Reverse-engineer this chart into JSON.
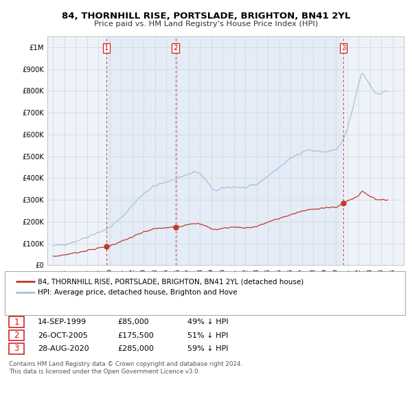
{
  "title": "84, THORNHILL RISE, PORTSLADE, BRIGHTON, BN41 2YL",
  "subtitle": "Price paid vs. HM Land Registry's House Price Index (HPI)",
  "hpi_label": "HPI: Average price, detached house, Brighton and Hove",
  "property_label": "84, THORNHILL RISE, PORTSLADE, BRIGHTON, BN41 2YL (detached house)",
  "copyright": "Contains HM Land Registry data © Crown copyright and database right 2024.\nThis data is licensed under the Open Government Licence v3.0.",
  "purchases": [
    {
      "date": 1999.71,
      "price": 85000,
      "label": "1",
      "text": "14-SEP-1999",
      "amount": "£85,000",
      "hpi_pct": "49% ↓ HPI"
    },
    {
      "date": 2005.82,
      "price": 175500,
      "label": "2",
      "text": "26-OCT-2005",
      "amount": "£175,500",
      "hpi_pct": "51% ↓ HPI"
    },
    {
      "date": 2020.66,
      "price": 285000,
      "label": "3",
      "text": "28-AUG-2020",
      "amount": "£285,000",
      "hpi_pct": "59% ↓ HPI"
    }
  ],
  "hpi_color": "#aabfdc",
  "property_color": "#c0392b",
  "vline_color": "#cc2222",
  "grid_color": "#d8d8d8",
  "bg_color": "#ffffff",
  "chart_bg": "#eef3fa",
  "shade_color": "#dce8f5",
  "ylim": [
    0,
    1050000
  ],
  "xlim": [
    1994.5,
    2026.0
  ],
  "yticks": [
    0,
    100000,
    200000,
    300000,
    400000,
    500000,
    600000,
    700000,
    800000,
    900000,
    1000000
  ],
  "ytick_labels": [
    "£0",
    "£100K",
    "£200K",
    "£300K",
    "£400K",
    "£500K",
    "£600K",
    "£700K",
    "£800K",
    "£900K",
    "£1M"
  ],
  "xticks": [
    1995,
    1996,
    1997,
    1998,
    1999,
    2000,
    2001,
    2002,
    2003,
    2004,
    2005,
    2006,
    2007,
    2008,
    2009,
    2010,
    2011,
    2012,
    2013,
    2014,
    2015,
    2016,
    2017,
    2018,
    2019,
    2020,
    2021,
    2022,
    2023,
    2024,
    2025
  ]
}
